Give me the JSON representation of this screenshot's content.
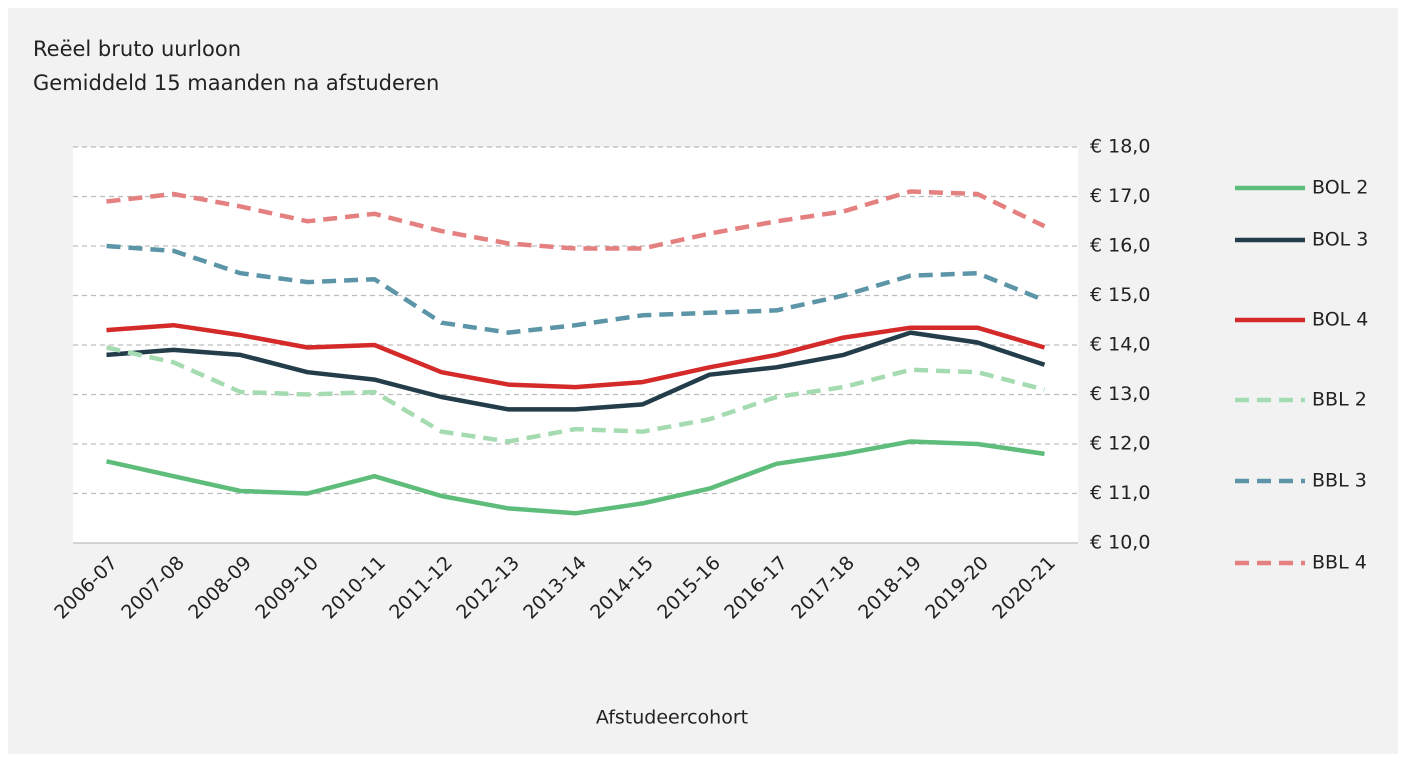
{
  "chart_data": {
    "type": "line",
    "title": "Reëel bruto uurloon",
    "subtitle": "Gemiddeld 15 maanden na afstuderen",
    "x_label": "Afstudeercohort",
    "categories": [
      "2006-07",
      "2007-08",
      "2008-09",
      "2009-10",
      "2010-11",
      "2011-12",
      "2012-13",
      "2013-14",
      "2014-15",
      "2015-16",
      "2016-17",
      "2017-18",
      "2018-19",
      "2019-20",
      "2020-21"
    ],
    "series": [
      {
        "name": "BOL 2",
        "color": "#5ebd7b",
        "dashed": false,
        "values": [
          11.65,
          11.35,
          11.05,
          11.0,
          11.35,
          10.95,
          10.7,
          10.6,
          10.8,
          11.1,
          11.6,
          11.8,
          12.05,
          12.0,
          11.8
        ]
      },
      {
        "name": "BOL 3",
        "color": "#233d4a",
        "dashed": false,
        "values": [
          13.8,
          13.9,
          13.8,
          13.45,
          13.3,
          12.95,
          12.7,
          12.7,
          12.8,
          13.4,
          13.55,
          13.8,
          14.25,
          14.05,
          13.6
        ]
      },
      {
        "name": "BOL 4",
        "color": "#d42a2a",
        "dashed": false,
        "values": [
          14.3,
          14.4,
          14.2,
          13.95,
          14.0,
          13.45,
          13.2,
          13.15,
          13.25,
          13.55,
          13.8,
          14.15,
          14.35,
          14.35,
          13.95
        ]
      },
      {
        "name": "BBL 2",
        "color": "#a5dbb0",
        "dashed": true,
        "values": [
          13.95,
          13.65,
          13.05,
          13.0,
          13.05,
          12.25,
          12.05,
          12.3,
          12.25,
          12.5,
          12.95,
          13.15,
          13.5,
          13.45,
          13.1
        ]
      },
      {
        "name": "BBL 3",
        "color": "#5c95a7",
        "dashed": true,
        "values": [
          16.0,
          15.9,
          15.45,
          15.27,
          15.33,
          14.45,
          14.25,
          14.4,
          14.6,
          14.65,
          14.7,
          15.0,
          15.4,
          15.45,
          14.9
        ]
      },
      {
        "name": "BBL 4",
        "color": "#e58080",
        "dashed": true,
        "values": [
          16.9,
          17.05,
          16.8,
          16.5,
          16.65,
          16.3,
          16.05,
          15.95,
          15.95,
          16.25,
          16.5,
          16.7,
          17.1,
          17.05,
          16.4
        ]
      }
    ],
    "ylim": [
      10,
      18
    ],
    "yticks": [
      {
        "value": 10,
        "label": "€ 10,0"
      },
      {
        "value": 11,
        "label": "€ 11,0"
      },
      {
        "value": 12,
        "label": "€ 12,0"
      },
      {
        "value": 13,
        "label": "€ 13,0"
      },
      {
        "value": 14,
        "label": "€ 14,0"
      },
      {
        "value": 15,
        "label": "€ 15,0"
      },
      {
        "value": 16,
        "label": "€ 16,0"
      },
      {
        "value": 17,
        "label": "€ 17,0"
      },
      {
        "value": 18,
        "label": "€ 18,0"
      }
    ],
    "grid": true,
    "legend": "right"
  }
}
